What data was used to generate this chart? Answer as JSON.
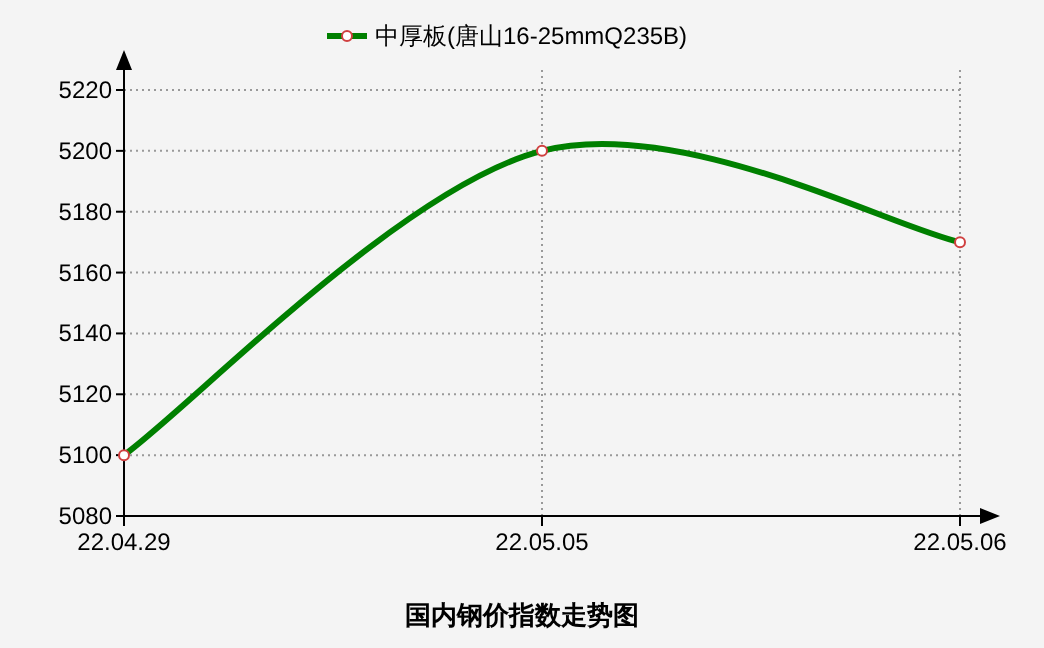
{
  "chart_data": {
    "type": "line",
    "title": "国内钢价指数走势图",
    "categories": [
      "22.04.29",
      "22.05.05",
      "22.05.06"
    ],
    "series": [
      {
        "name": "中厚板(唐山16-25mmQ235B)",
        "color": "#008000",
        "values": [
          5100,
          5200,
          5170
        ]
      }
    ],
    "ylim": [
      5080,
      5220
    ],
    "yticks": [
      5080,
      5100,
      5120,
      5140,
      5160,
      5180,
      5200,
      5220
    ],
    "grid": true,
    "legend": "top",
    "marker": "circle",
    "line_style": "solid"
  }
}
